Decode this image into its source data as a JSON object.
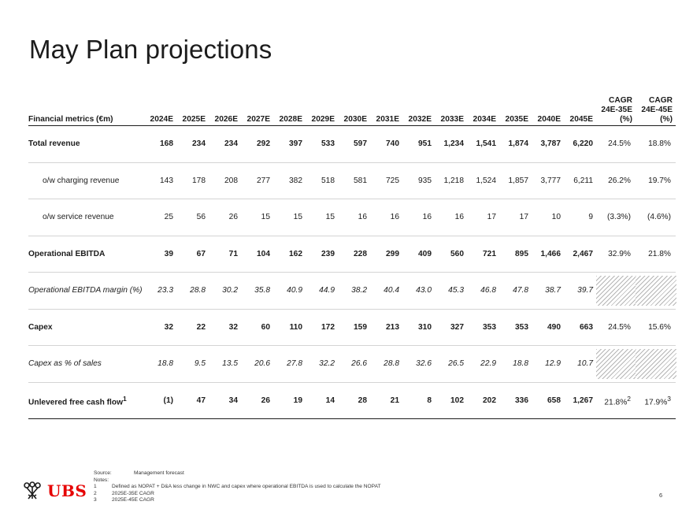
{
  "title": "May Plan projections",
  "table": {
    "headers": [
      "Financial metrics (€m)",
      "2024E",
      "2025E",
      "2026E",
      "2027E",
      "2028E",
      "2029E",
      "2030E",
      "2031E",
      "2032E",
      "2033E",
      "2034E",
      "2035E",
      "2040E",
      "2045E"
    ],
    "cagr_headers": [
      {
        "line1": "CAGR",
        "line2": "24E-35E",
        "line3": "(%)"
      },
      {
        "line1": "CAGR",
        "line2": "24E-45E",
        "line3": "(%)"
      }
    ],
    "rows": [
      {
        "label": "Total revenue",
        "values": [
          "168",
          "234",
          "234",
          "292",
          "397",
          "533",
          "597",
          "740",
          "951",
          "1,234",
          "1,541",
          "1,874",
          "3,787",
          "6,220"
        ],
        "cagr1": "24.5%",
        "cagr2": "18.8%"
      },
      {
        "label": "o/w charging revenue",
        "values": [
          "143",
          "178",
          "208",
          "277",
          "382",
          "518",
          "581",
          "725",
          "935",
          "1,218",
          "1,524",
          "1,857",
          "3,777",
          "6,211"
        ],
        "cagr1": "26.2%",
        "cagr2": "19.7%"
      },
      {
        "label": "o/w service revenue",
        "values": [
          "25",
          "56",
          "26",
          "15",
          "15",
          "15",
          "16",
          "16",
          "16",
          "16",
          "17",
          "17",
          "10",
          "9"
        ],
        "cagr1": "(3.3%)",
        "cagr2": "(4.6%)"
      },
      {
        "label": "Operational EBITDA",
        "values": [
          "39",
          "67",
          "71",
          "104",
          "162",
          "239",
          "228",
          "299",
          "409",
          "560",
          "721",
          "895",
          "1,466",
          "2,467"
        ],
        "cagr1": "32.9%",
        "cagr2": "21.8%"
      },
      {
        "label": "Operational EBITDA margin (%)",
        "values": [
          "23.3",
          "28.8",
          "30.2",
          "35.8",
          "40.9",
          "44.9",
          "38.2",
          "40.4",
          "43.0",
          "45.3",
          "46.8",
          "47.8",
          "38.7",
          "39.7"
        ]
      },
      {
        "label": "Capex",
        "values": [
          "32",
          "22",
          "32",
          "60",
          "110",
          "172",
          "159",
          "213",
          "310",
          "327",
          "353",
          "353",
          "490",
          "663"
        ],
        "cagr1": "24.5%",
        "cagr2": "15.6%"
      },
      {
        "label": "Capex as % of sales",
        "values": [
          "18.8",
          "9.5",
          "13.5",
          "20.6",
          "27.8",
          "32.2",
          "26.6",
          "28.8",
          "32.6",
          "26.5",
          "22.9",
          "18.8",
          "12.9",
          "10.7"
        ]
      },
      {
        "label": "Unlevered free cash flow",
        "label_sup": "1",
        "values": [
          "(1)",
          "47",
          "34",
          "26",
          "19",
          "14",
          "28",
          "21",
          "8",
          "102",
          "202",
          "336",
          "658",
          "1,267"
        ],
        "cagr1": "21.8%",
        "cagr1_sup": "2",
        "cagr2": "17.9%",
        "cagr2_sup": "3"
      }
    ]
  },
  "footer": {
    "source_label": "Source:",
    "source_value": "Management forecast",
    "notes_label": "Notes:",
    "notes": [
      {
        "num": "1",
        "text": "Defined as NOPAT + D&A less change in NWC and capex where operational EBITDA is used to calculate the NOPAT"
      },
      {
        "num": "2",
        "text": "2025E-35E CAGR"
      },
      {
        "num": "3",
        "text": "2025E-45E CAGR"
      }
    ]
  },
  "logo_text": "UBS",
  "page_number": "6"
}
